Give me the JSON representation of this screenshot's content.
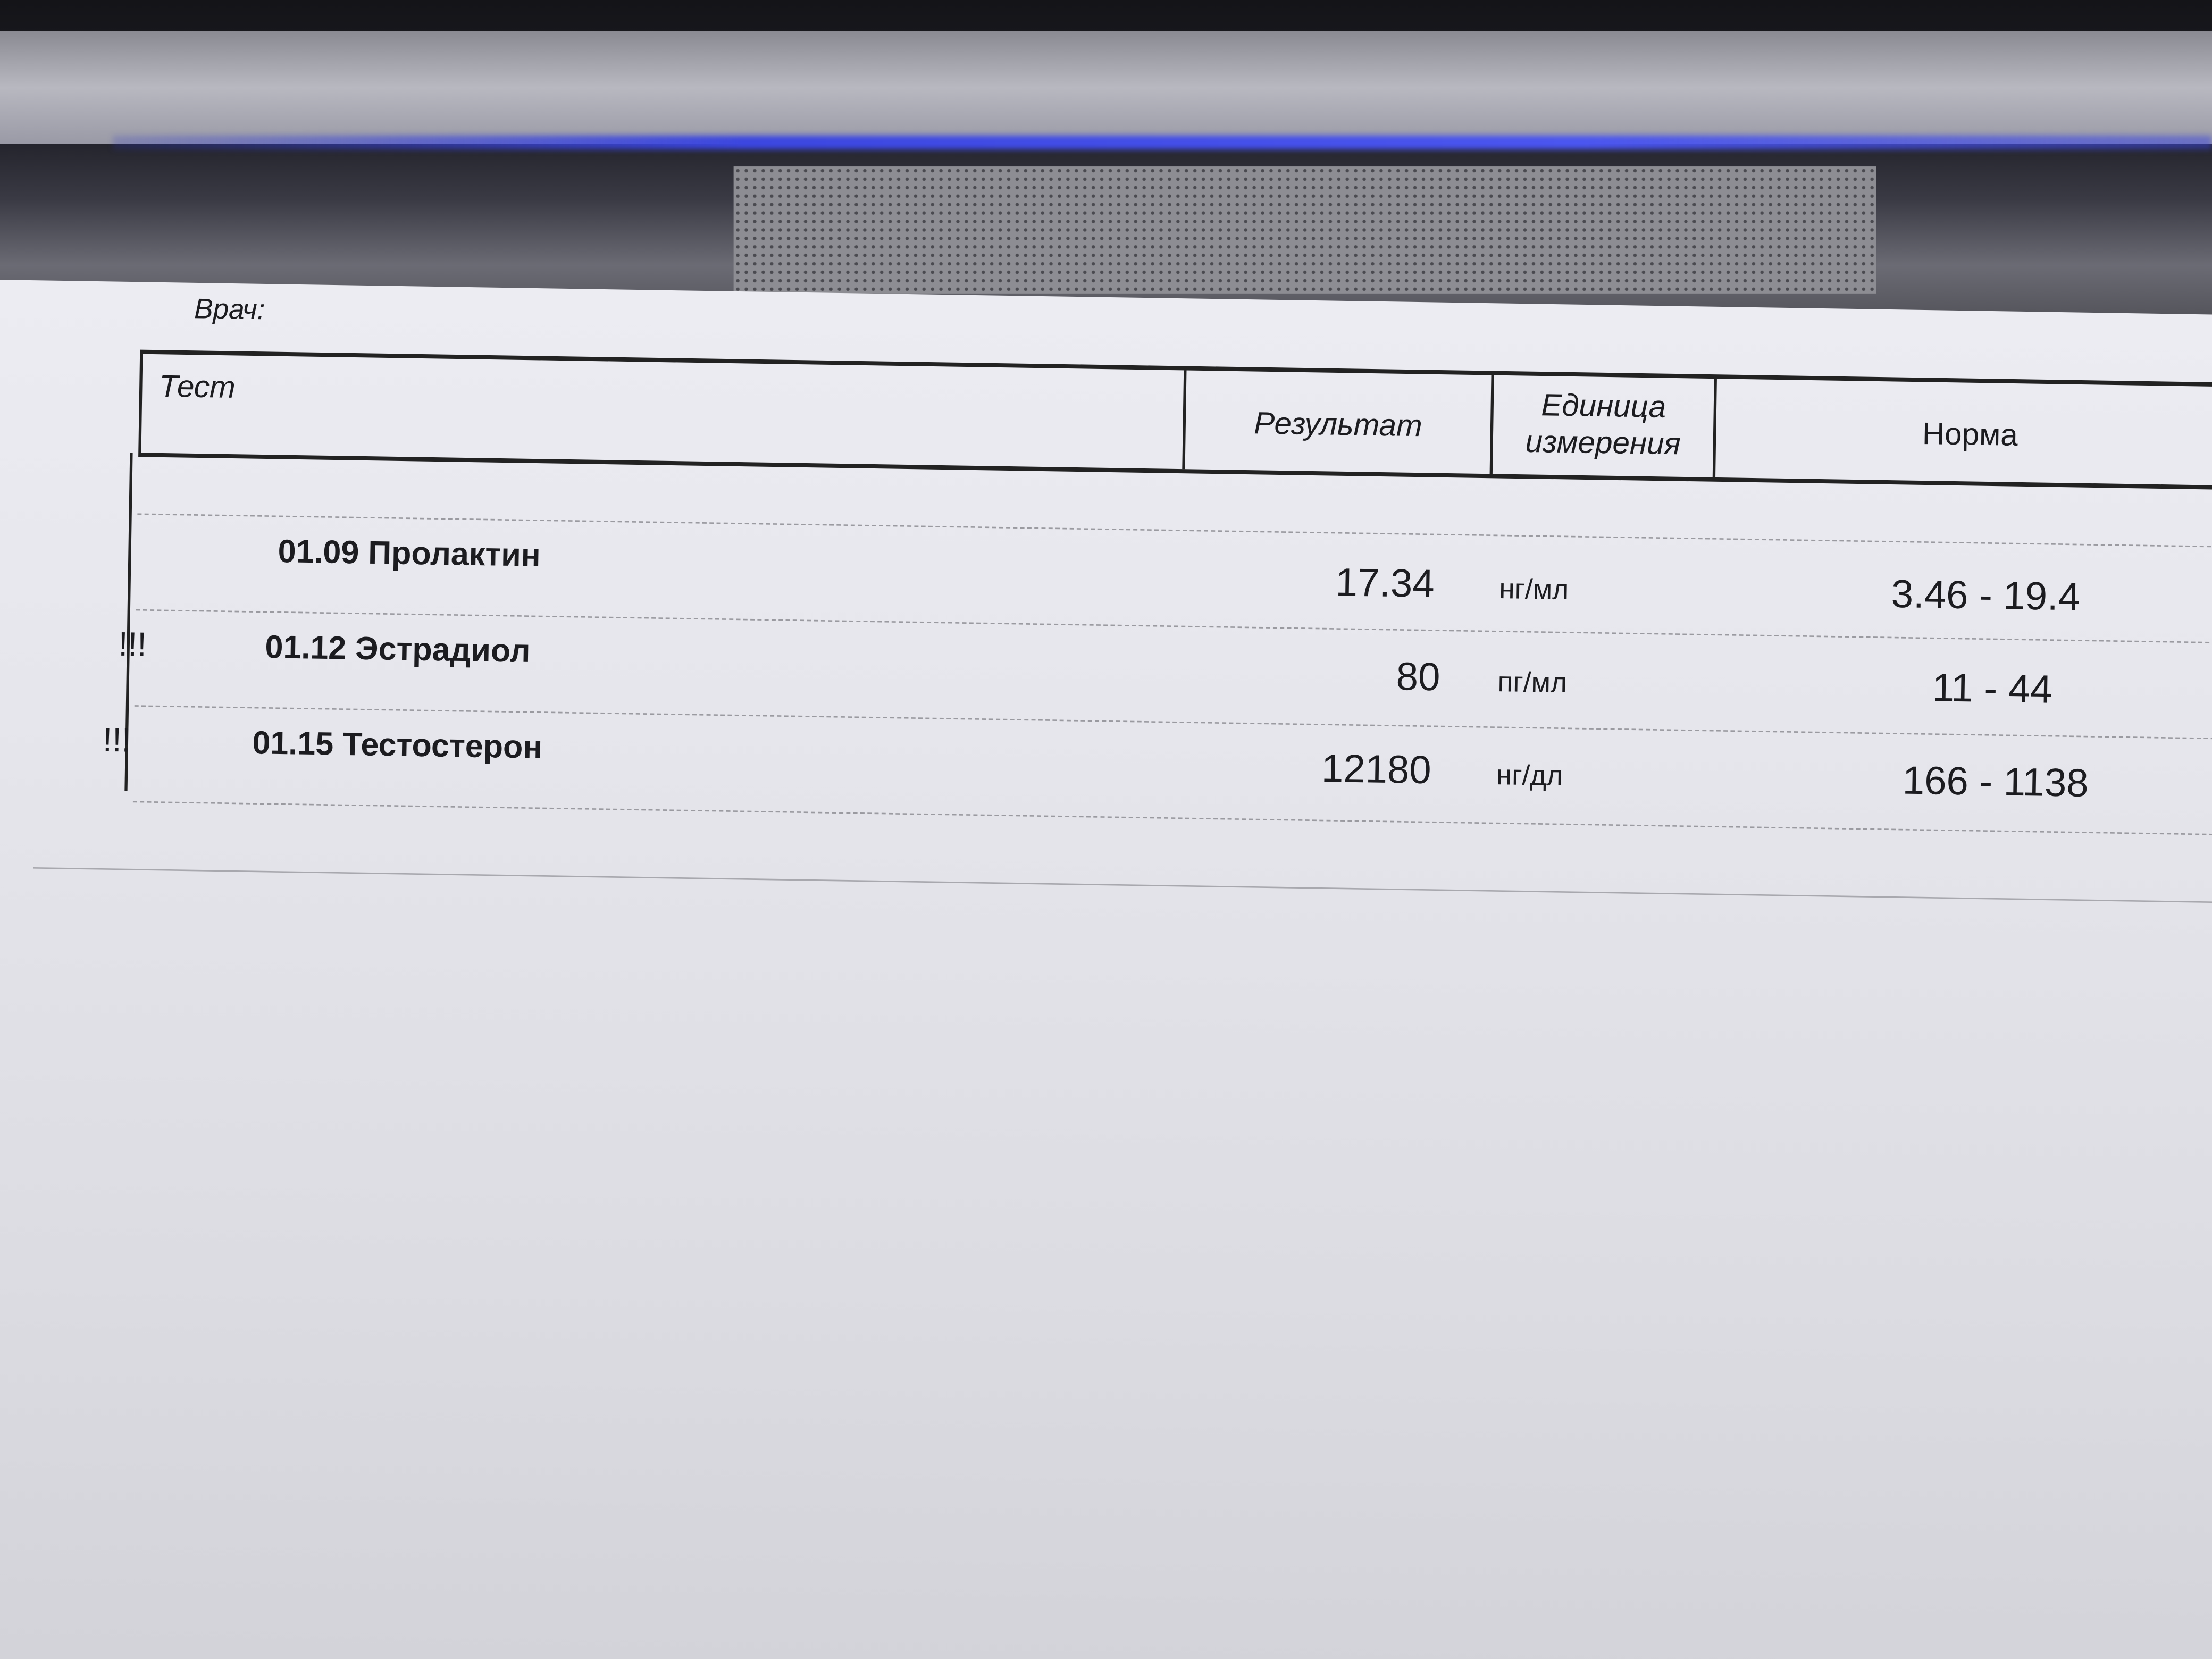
{
  "document": {
    "doctor_label": "Врач:",
    "columns": {
      "test": "Тест",
      "result": "Результат",
      "unit_line1": "Единица",
      "unit_line2": "измерения",
      "norm": "Норма"
    },
    "rows": [
      {
        "flag": "",
        "name": "01.09 Пролактин",
        "result": "17.34",
        "unit": "нг/мл",
        "norm": "3.46 - 19.4"
      },
      {
        "flag": "!!!",
        "name": "01.12 Эстрадиол",
        "result": "80",
        "unit": "пг/мл",
        "norm": "11 - 44"
      },
      {
        "flag": "!!!",
        "name": "01.15 Тестостерон",
        "result": "12180",
        "unit": "нг/дл",
        "norm": "166 - 1138"
      }
    ]
  }
}
